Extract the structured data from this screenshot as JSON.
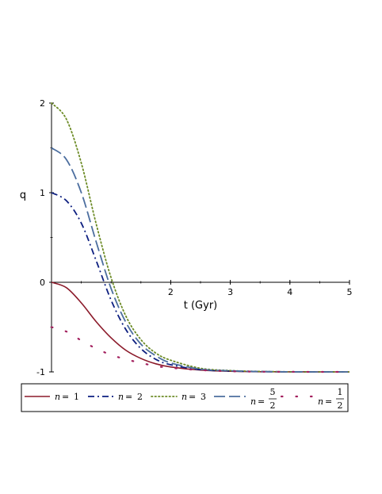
{
  "chart_data": {
    "type": "line",
    "title": "",
    "xlabel": "t (Gyr)",
    "ylabel": "q",
    "xlim": [
      0,
      5
    ],
    "ylim": [
      -1,
      2
    ],
    "x_ticks": [
      "2",
      "3",
      "4",
      "5"
    ],
    "y_ticks": [
      "2",
      "1",
      "0",
      "-1"
    ],
    "grid": false,
    "legend_position": "bottom",
    "series": [
      {
        "name": "n = 1",
        "n_symbol": "n",
        "n_value": "1",
        "color": "#8b1a2a",
        "style": "solid",
        "x": [
          0,
          0.25,
          0.5,
          0.75,
          1.0,
          1.25,
          1.5,
          1.75,
          2.0,
          2.5,
          3.0,
          3.5,
          4.0,
          4.5,
          5.0
        ],
        "y": [
          0,
          -0.06,
          -0.23,
          -0.44,
          -0.62,
          -0.76,
          -0.85,
          -0.91,
          -0.945,
          -0.98,
          -0.993,
          -0.998,
          -0.999,
          -1.0,
          -1.0
        ]
      },
      {
        "name": "n = 2",
        "n_symbol": "n",
        "n_value": "2",
        "color": "#0d1f80",
        "style": "dashdot",
        "x": [
          0,
          0.25,
          0.5,
          0.75,
          1.0,
          1.25,
          1.5,
          1.75,
          2.0,
          2.5,
          3.0,
          3.5,
          4.0,
          4.5,
          5.0
        ],
        "y": [
          1.0,
          0.91,
          0.66,
          0.24,
          -0.2,
          -0.53,
          -0.74,
          -0.86,
          -0.92,
          -0.975,
          -0.99,
          -0.997,
          -0.999,
          -1.0,
          -1.0
        ]
      },
      {
        "name": "n = 3",
        "n_symbol": "n",
        "n_value": "3",
        "color": "#6b8a24",
        "style": "dotted",
        "x": [
          0,
          0.25,
          0.5,
          0.75,
          1.0,
          1.25,
          1.5,
          1.75,
          2.0,
          2.5,
          3.0,
          3.5,
          4.0,
          4.5,
          5.0
        ],
        "y": [
          2.0,
          1.82,
          1.33,
          0.65,
          0.05,
          -0.38,
          -0.64,
          -0.79,
          -0.87,
          -0.96,
          -0.985,
          -0.995,
          -0.999,
          -1.0,
          -1.0
        ]
      },
      {
        "name": "n = 5/2",
        "n_symbol": "n",
        "n_numerator": "5",
        "n_denominator": "2",
        "color": "#4c6e9f",
        "style": "longdash",
        "x": [
          0,
          0.25,
          0.5,
          0.75,
          1.0,
          1.25,
          1.5,
          1.75,
          2.0,
          2.5,
          3.0,
          3.5,
          4.0,
          4.5,
          5.0
        ],
        "y": [
          1.5,
          1.37,
          1.0,
          0.45,
          -0.07,
          -0.45,
          -0.69,
          -0.82,
          -0.9,
          -0.97,
          -0.988,
          -0.996,
          -0.999,
          -1.0,
          -1.0
        ]
      },
      {
        "name": "n = 1/2",
        "n_symbol": "n",
        "n_numerator": "1",
        "n_denominator": "2",
        "color": "#a3205e",
        "style": "sparse-dotted",
        "x": [
          0,
          0.25,
          0.5,
          0.75,
          1.0,
          1.25,
          1.5,
          1.75,
          2.0,
          2.5,
          3.0,
          3.5,
          4.0,
          4.5,
          5.0
        ],
        "y": [
          -0.5,
          -0.55,
          -0.65,
          -0.74,
          -0.81,
          -0.86,
          -0.9,
          -0.935,
          -0.955,
          -0.98,
          -0.993,
          -0.998,
          -0.999,
          -1.0,
          -1.0
        ]
      }
    ]
  }
}
